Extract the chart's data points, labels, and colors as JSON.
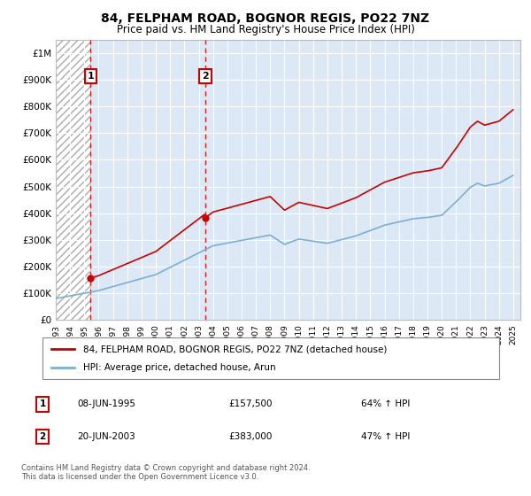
{
  "title": "84, FELPHAM ROAD, BOGNOR REGIS, PO22 7NZ",
  "subtitle": "Price paid vs. HM Land Registry's House Price Index (HPI)",
  "ylim": [
    0,
    1050000
  ],
  "xlim_start": 1993.0,
  "xlim_end": 2025.5,
  "yticks": [
    0,
    100000,
    200000,
    300000,
    400000,
    500000,
    600000,
    700000,
    800000,
    900000,
    1000000
  ],
  "ytick_labels": [
    "£0",
    "£100K",
    "£200K",
    "£300K",
    "£400K",
    "£500K",
    "£600K",
    "£700K",
    "£800K",
    "£900K",
    "£1M"
  ],
  "xticks": [
    1993,
    1994,
    1995,
    1996,
    1997,
    1998,
    1999,
    2000,
    2001,
    2002,
    2003,
    2004,
    2005,
    2006,
    2007,
    2008,
    2009,
    2010,
    2011,
    2012,
    2013,
    2014,
    2015,
    2016,
    2017,
    2018,
    2019,
    2020,
    2021,
    2022,
    2023,
    2024,
    2025
  ],
  "transactions": [
    {
      "id": 1,
      "year": 1995.44,
      "price": 157500,
      "date": "08-JUN-1995",
      "price_str": "£157,500",
      "pct": "64% ↑ HPI"
    },
    {
      "id": 2,
      "year": 2003.46,
      "price": 383000,
      "date": "20-JUN-2003",
      "price_str": "£383,000",
      "pct": "47% ↑ HPI"
    }
  ],
  "legend_line1": "84, FELPHAM ROAD, BOGNOR REGIS, PO22 7NZ (detached house)",
  "legend_line2": "HPI: Average price, detached house, Arun",
  "footer": "Contains HM Land Registry data © Crown copyright and database right 2024.\nThis data is licensed under the Open Government Licence v3.0.",
  "red_color": "#cc0000",
  "blue_color": "#7bafd4",
  "hatch_end_year": 1995.44,
  "background_color": "#ffffff",
  "plot_bg_color": "#dce8f5"
}
